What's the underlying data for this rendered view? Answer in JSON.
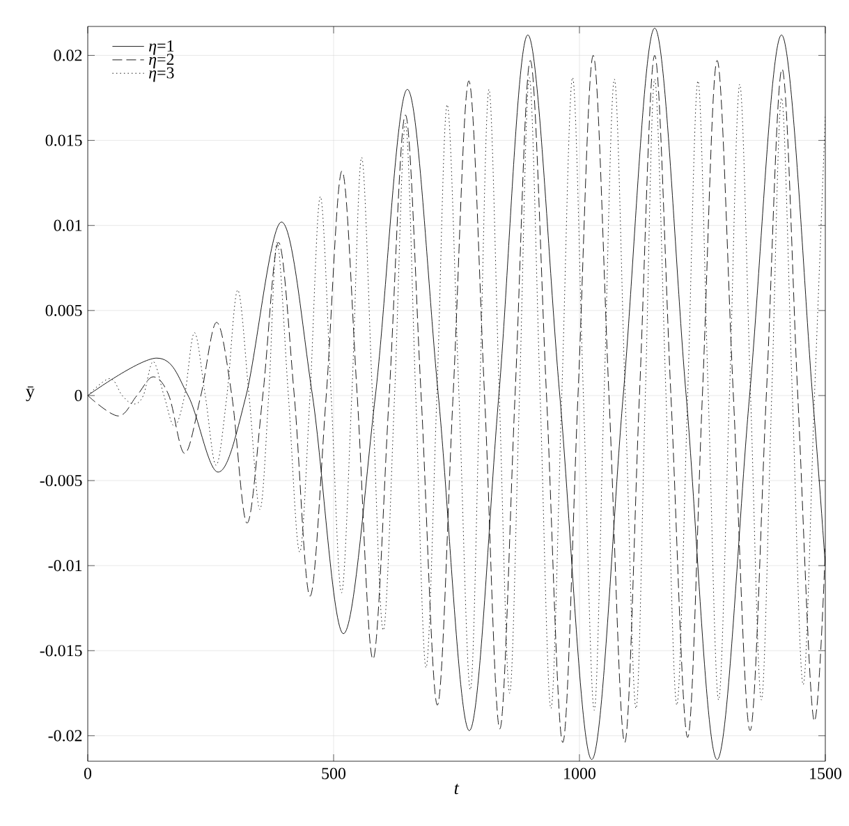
{
  "chart_data": {
    "type": "line",
    "xlabel": "*t*",
    "ylabel": "ȳ",
    "xlim": [
      0,
      1500
    ],
    "ylim": [
      -0.0215,
      0.0217
    ],
    "xticks": [
      0,
      500,
      1000,
      1500
    ],
    "yticks": [
      -0.02,
      -0.015,
      -0.01,
      -0.005,
      0,
      0.005,
      0.01,
      0.015,
      0.02
    ],
    "grid": true,
    "legend": "top left",
    "series": [
      {
        "name": "*η*=1",
        "color": "#000000",
        "line_style": "solid",
        "x": [
          0,
          140,
          204,
          265,
          322,
          394,
          457,
          520,
          585,
          650,
          713,
          776,
          836,
          895,
          960,
          1025,
          1089,
          1153,
          1217,
          1280,
          1346,
          1411,
          1474,
          1500
        ],
        "values": [
          0,
          0.0022,
          0,
          -0.0045,
          0,
          0.0102,
          0,
          -0.014,
          0,
          0.018,
          0,
          -0.0197,
          0,
          0.0212,
          0,
          -0.0214,
          0,
          0.0216,
          0,
          -0.0214,
          0,
          0.0212,
          0,
          -0.01
        ]
      },
      {
        "name": "*η*=2",
        "color": "#000000",
        "line_style": "dashed",
        "x": [
          0,
          62,
          100,
          133,
          165,
          197,
          230,
          262,
          293,
          324,
          356,
          388,
          420,
          452,
          485,
          517,
          548,
          580,
          613,
          646,
          678,
          711,
          743,
          775,
          807,
          838,
          869,
          900,
          933,
          966,
          997,
          1028,
          1060,
          1092,
          1122,
          1153,
          1186,
          1220,
          1250,
          1280,
          1313,
          1347,
          1380,
          1412,
          1444,
          1476,
          1500
        ],
        "values": [
          0,
          -0.0012,
          0,
          0.0011,
          0,
          -0.0034,
          0,
          0.0043,
          0,
          -0.0075,
          0,
          0.009,
          0,
          -0.0118,
          0,
          0.0132,
          0,
          -0.0155,
          0,
          0.0165,
          0,
          -0.0182,
          0,
          0.0185,
          0,
          -0.0196,
          0,
          0.0197,
          0,
          -0.0204,
          0,
          0.02,
          0,
          -0.0204,
          0,
          0.02,
          0,
          -0.0201,
          0,
          0.0197,
          0,
          -0.0197,
          0,
          0.0192,
          0,
          -0.019,
          -0.009
        ]
      },
      {
        "name": "*η*=3",
        "color": "#000000",
        "line_style": "dotted",
        "x": [
          0,
          45,
          70,
          93,
          113,
          133,
          155,
          176,
          197,
          217,
          239,
          261,
          283,
          305,
          328,
          350,
          368,
          385,
          408,
          431,
          452,
          473,
          495,
          516,
          537,
          557,
          579,
          601,
          624,
          646,
          667,
          688,
          710,
          731,
          755,
          778,
          797,
          816,
          837,
          858,
          878,
          898,
          920,
          942,
          964,
          986,
          1008,
          1030,
          1050,
          1071,
          1093,
          1115,
          1134,
          1153,
          1176,
          1198,
          1220,
          1241,
          1262,
          1283,
          1305,
          1326,
          1348,
          1370,
          1391,
          1411,
          1433,
          1455,
          1478,
          1500
        ],
        "values": [
          0,
          0.001,
          0,
          -0.0005,
          0,
          0.002,
          0,
          -0.0018,
          0,
          0.0037,
          0,
          -0.0041,
          0,
          0.0062,
          0,
          -0.0067,
          0,
          0.009,
          0,
          -0.0092,
          0,
          0.0117,
          0,
          -0.0116,
          0,
          0.014,
          0,
          -0.0138,
          0,
          0.016,
          0,
          -0.016,
          0,
          0.0171,
          0,
          -0.0173,
          0,
          0.018,
          0,
          -0.0175,
          0,
          0.0187,
          0,
          -0.0184,
          0,
          0.0187,
          0,
          -0.0185,
          0,
          0.0186,
          0,
          -0.0184,
          0,
          0.0186,
          0,
          -0.0182,
          0,
          0.0185,
          0,
          -0.0179,
          0,
          0.0183,
          0,
          -0.0179,
          0,
          0.0175,
          0,
          -0.017,
          0,
          0.0165
        ]
      }
    ]
  }
}
